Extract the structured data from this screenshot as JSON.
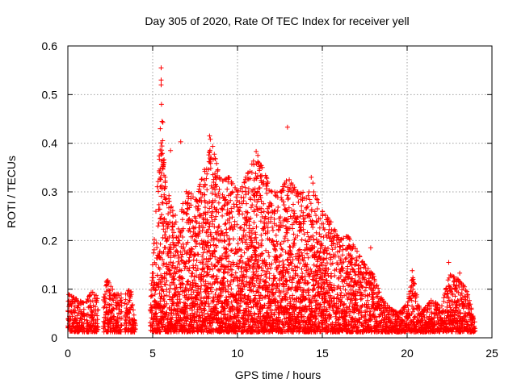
{
  "chart_data": {
    "type": "scatter",
    "title": "Day 305 of 2020, Rate Of TEC Index for receiver yell",
    "xlabel": "GPS time / hours",
    "ylabel": "ROTI / TECUs",
    "xlim": [
      0,
      25
    ],
    "ylim": [
      0,
      0.6
    ],
    "xticks": [
      0,
      5,
      10,
      15,
      20,
      25
    ],
    "yticks": [
      0,
      0.1,
      0.2,
      0.3,
      0.4,
      0.5,
      0.6
    ],
    "xtick_labels": [
      "0",
      "5",
      "10",
      "15",
      "20",
      "25"
    ],
    "ytick_labels": [
      "0",
      "0.1",
      "0.2",
      "0.3",
      "0.4",
      "0.5",
      "0.6"
    ],
    "grid": true,
    "marker": "+",
    "series": [
      {
        "name": "ROTI",
        "color": "#ff0000",
        "envelope": [
          [
            0.0,
            0.09
          ],
          [
            0.5,
            0.08
          ],
          [
            1.0,
            0.07
          ],
          [
            1.5,
            0.1
          ],
          [
            2.0,
            0.06
          ],
          [
            2.3,
            0.12
          ],
          [
            2.8,
            0.09
          ],
          [
            3.3,
            0.09
          ],
          [
            3.7,
            0.1
          ],
          [
            4.0,
            0.02
          ],
          [
            4.8,
            0.02
          ],
          [
            5.0,
            0.15
          ],
          [
            5.2,
            0.26
          ],
          [
            5.5,
            0.45
          ],
          [
            5.8,
            0.3
          ],
          [
            6.2,
            0.28
          ],
          [
            6.5,
            0.22
          ],
          [
            7.0,
            0.32
          ],
          [
            7.5,
            0.28
          ],
          [
            8.0,
            0.34
          ],
          [
            8.5,
            0.4
          ],
          [
            9.0,
            0.32
          ],
          [
            9.5,
            0.33
          ],
          [
            10.0,
            0.3
          ],
          [
            10.5,
            0.33
          ],
          [
            11.0,
            0.37
          ],
          [
            11.5,
            0.35
          ],
          [
            12.0,
            0.3
          ],
          [
            12.5,
            0.3
          ],
          [
            13.0,
            0.33
          ],
          [
            13.5,
            0.3
          ],
          [
            14.0,
            0.3
          ],
          [
            14.5,
            0.3
          ],
          [
            15.0,
            0.26
          ],
          [
            15.5,
            0.24
          ],
          [
            16.0,
            0.2
          ],
          [
            16.5,
            0.21
          ],
          [
            17.0,
            0.18
          ],
          [
            17.5,
            0.15
          ],
          [
            18.0,
            0.13
          ],
          [
            18.5,
            0.08
          ],
          [
            19.0,
            0.06
          ],
          [
            19.5,
            0.05
          ],
          [
            20.0,
            0.07
          ],
          [
            20.3,
            0.13
          ],
          [
            20.8,
            0.05
          ],
          [
            21.5,
            0.08
          ],
          [
            22.0,
            0.06
          ],
          [
            22.5,
            0.13
          ],
          [
            23.0,
            0.12
          ],
          [
            23.5,
            0.1
          ],
          [
            24.0,
            0.03
          ]
        ],
        "gaps": [
          [
            1.0,
            1.1
          ],
          [
            1.8,
            2.1
          ],
          [
            3.2,
            3.35
          ],
          [
            4.0,
            4.85
          ]
        ],
        "outliers": [
          [
            5.5,
            0.555
          ],
          [
            5.5,
            0.53
          ],
          [
            5.5,
            0.52
          ],
          [
            5.52,
            0.48
          ],
          [
            5.55,
            0.445
          ],
          [
            5.6,
            0.443
          ],
          [
            5.45,
            0.43
          ],
          [
            6.05,
            0.385
          ],
          [
            6.65,
            0.403
          ],
          [
            8.35,
            0.415
          ],
          [
            8.4,
            0.408
          ],
          [
            12.95,
            0.433
          ],
          [
            11.1,
            0.383
          ],
          [
            11.2,
            0.375
          ],
          [
            13.05,
            0.325
          ],
          [
            14.35,
            0.33
          ],
          [
            14.45,
            0.318
          ],
          [
            17.85,
            0.185
          ],
          [
            20.3,
            0.138
          ],
          [
            22.45,
            0.155
          ],
          [
            23.1,
            0.133
          ]
        ]
      }
    ]
  }
}
